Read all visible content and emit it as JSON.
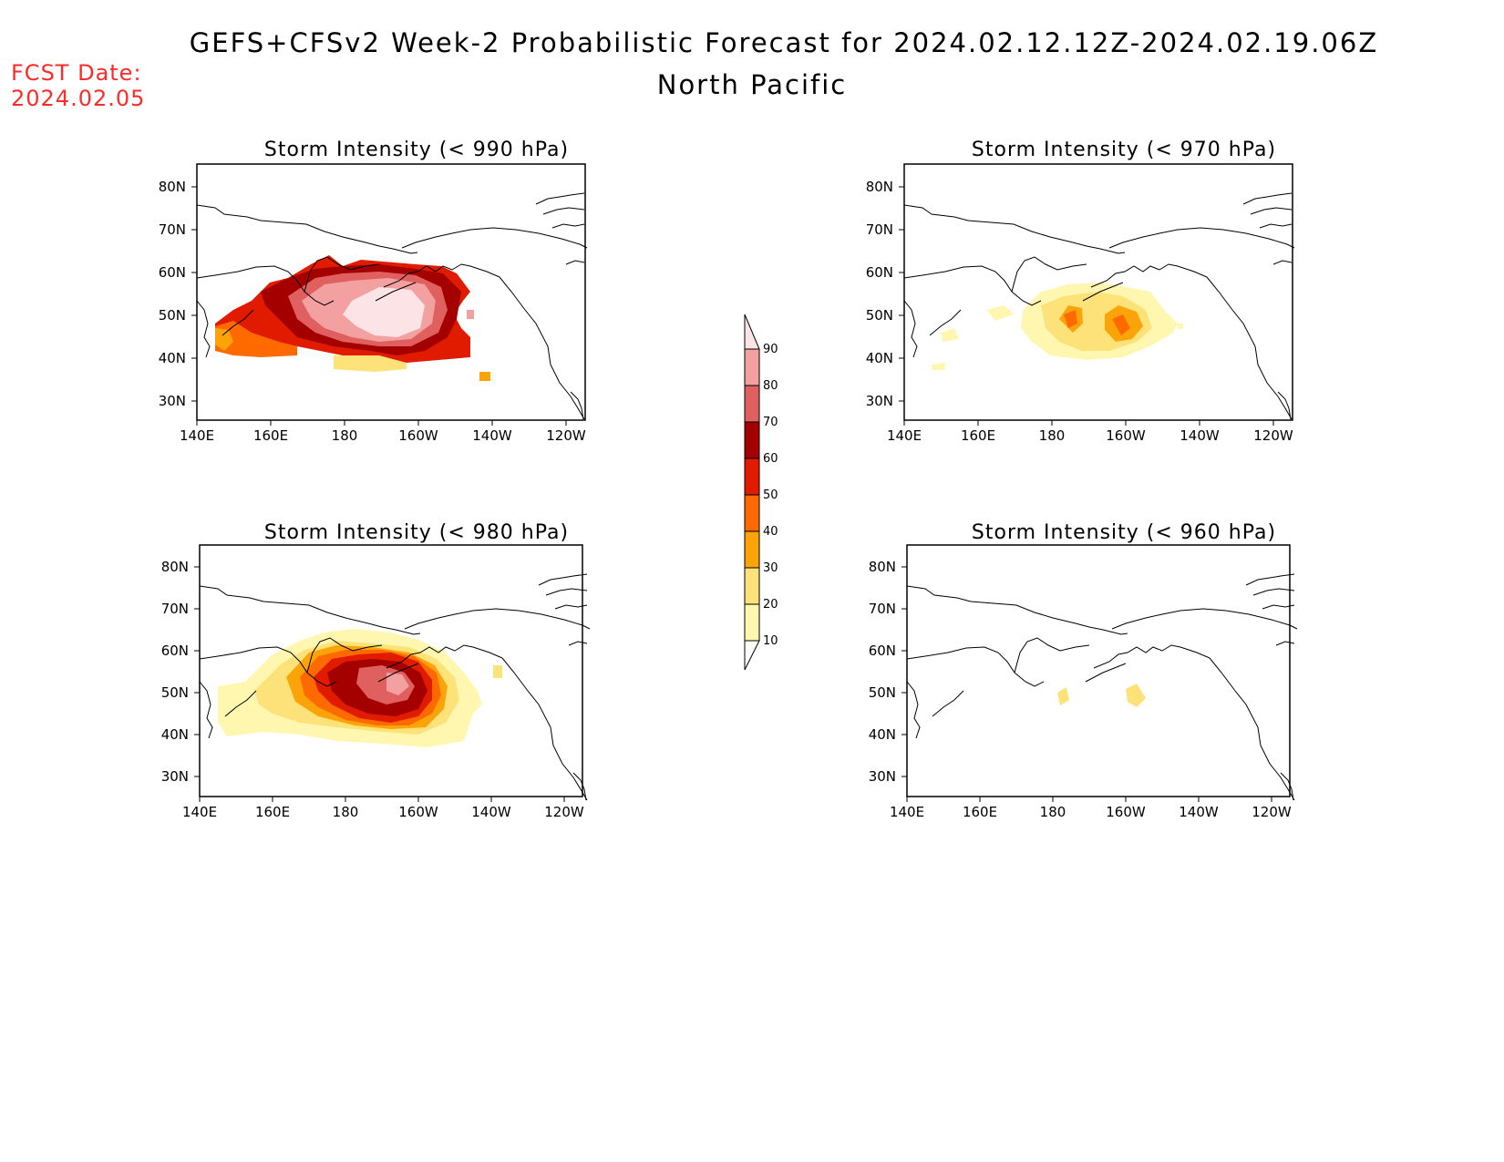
{
  "header": {
    "title": "GEFS+CFSv2 Week-2 Probabilistic Forecast for 2024.02.12.12Z-2024.02.19.06Z",
    "subtitle": "North Pacific",
    "fcst_date_label": "FCST Date:",
    "fcst_date_value": "2024.02.05"
  },
  "panels": [
    {
      "id": "p990",
      "title": "Storm Intensity (< 990 hPa)"
    },
    {
      "id": "p970",
      "title": "Storm Intensity (< 970 hPa)"
    },
    {
      "id": "p980",
      "title": "Storm Intensity (< 980 hPa)"
    },
    {
      "id": "p960",
      "title": "Storm Intensity (< 960 hPa)"
    }
  ],
  "axes": {
    "lon_ticks": [
      "140E",
      "160E",
      "180",
      "160W",
      "140W",
      "120W"
    ],
    "lat_ticks": [
      "80N",
      "70N",
      "60N",
      "50N",
      "40N",
      "30N"
    ]
  },
  "colorbar": {
    "levels": [
      "10",
      "20",
      "30",
      "40",
      "50",
      "60",
      "70",
      "80",
      "90"
    ],
    "colors": [
      "#fff7b0",
      "#fde27a",
      "#fba40a",
      "#ff6a00",
      "#e01b00",
      "#a40000",
      "#e06060",
      "#f2a0a0",
      "#fce4e6"
    ]
  }
}
